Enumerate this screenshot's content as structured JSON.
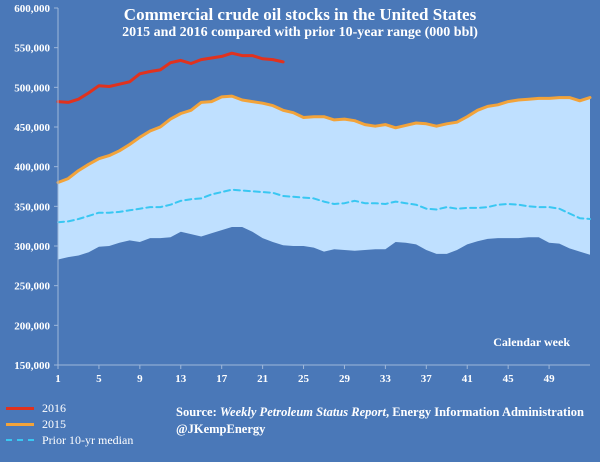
{
  "chart_data": {
    "type": "area",
    "title": "Commercial crude oil stocks in the United States",
    "subtitle": "2015 and 2016 compared with prior 10-year range (000 bbl)",
    "xlabel": "Calendar week",
    "ylabel": "",
    "xlim": [
      1,
      53
    ],
    "ylim": [
      150000,
      600000
    ],
    "x_ticks": [
      1,
      5,
      9,
      13,
      17,
      21,
      25,
      29,
      33,
      37,
      41,
      45,
      49
    ],
    "y_ticks": [
      150000,
      200000,
      250000,
      300000,
      350000,
      400000,
      450000,
      500000,
      550000,
      600000
    ],
    "y_tick_labels": [
      "150,000",
      "200,000",
      "250,000",
      "300,000",
      "350,000",
      "400,000",
      "450,000",
      "500,000",
      "550,000",
      "600,000"
    ],
    "x_tick_labels": [
      "1",
      "5",
      "9",
      "13",
      "17",
      "21",
      "25",
      "29",
      "33",
      "37",
      "41",
      "45",
      "49"
    ],
    "range": {
      "name": "Prior 10-yr range",
      "color": "#bfe0ff",
      "min": [
        283000,
        286000,
        288000,
        292000,
        299000,
        300000,
        304000,
        307000,
        305000,
        310000,
        310000,
        311000,
        318000,
        315000,
        312000,
        316000,
        320000,
        324000,
        324000,
        318000,
        310000,
        305000,
        301000,
        300000,
        300000,
        298000,
        293000,
        296000,
        295000,
        294000,
        295000,
        296000,
        296000,
        305000,
        304000,
        302000,
        295000,
        290000,
        290000,
        295000,
        302000,
        306000,
        309000,
        310000,
        310000,
        310000,
        311000,
        311000,
        304000,
        303000,
        297000,
        293000,
        289000
      ],
      "max": [
        380000,
        385000,
        395000,
        403000,
        410000,
        414000,
        420000,
        428000,
        437000,
        445000,
        450000,
        460000,
        467000,
        471000,
        481000,
        482000,
        488000,
        489000,
        484000,
        482000,
        480000,
        477000,
        471000,
        468000,
        462000,
        463000,
        463000,
        459000,
        460000,
        458000,
        453000,
        451000,
        453000,
        449000,
        452000,
        455000,
        454000,
        451000,
        454000,
        456000,
        463000,
        471000,
        476000,
        478000,
        482000,
        484000,
        485000,
        486000,
        486000,
        487000,
        487000,
        483000,
        487000
      ]
    },
    "series": [
      {
        "name": "2016",
        "color": "#e0321e",
        "values": [
          482000,
          481000,
          485000,
          493000,
          502000,
          501000,
          504000,
          507000,
          517000,
          520000,
          522000,
          531000,
          534000,
          530000,
          535000,
          537000,
          539000,
          543000,
          540000,
          540000,
          536000,
          535000,
          532000
        ]
      },
      {
        "name": "2015",
        "color": "#f2a33a",
        "values": [
          380000,
          385000,
          395000,
          403000,
          410000,
          414000,
          420000,
          428000,
          437000,
          445000,
          450000,
          460000,
          467000,
          471000,
          481000,
          482000,
          488000,
          489000,
          484000,
          482000,
          480000,
          477000,
          471000,
          468000,
          462000,
          463000,
          463000,
          459000,
          460000,
          458000,
          453000,
          451000,
          453000,
          449000,
          452000,
          455000,
          454000,
          451000,
          454000,
          456000,
          463000,
          471000,
          476000,
          478000,
          482000,
          484000,
          485000,
          486000,
          486000,
          487000,
          487000,
          483000,
          487000
        ]
      },
      {
        "name": "Prior 10-yr median",
        "color": "#39c7f2",
        "dashed": true,
        "values": [
          330000,
          331000,
          334000,
          338000,
          342000,
          342000,
          343000,
          345000,
          347000,
          349000,
          349000,
          352000,
          357000,
          359000,
          360000,
          365000,
          368000,
          371000,
          370000,
          369000,
          368000,
          367000,
          363000,
          362000,
          361000,
          360000,
          356000,
          353000,
          354000,
          357000,
          354000,
          354000,
          353000,
          356000,
          354000,
          352000,
          347000,
          346000,
          349000,
          347000,
          348000,
          348000,
          349000,
          352000,
          353000,
          352000,
          350000,
          349000,
          349000,
          347000,
          341000,
          335000,
          334000
        ]
      }
    ],
    "legend": {
      "entries": [
        "2016",
        "2015",
        "Prior 10-yr median"
      ],
      "placement": "bottom-left"
    }
  },
  "source": {
    "prefix": "Source:",
    "report": "Weekly Petroleum Status Report",
    "agency": ", Energy Information Administration",
    "handle": "@JKempEnergy"
  }
}
